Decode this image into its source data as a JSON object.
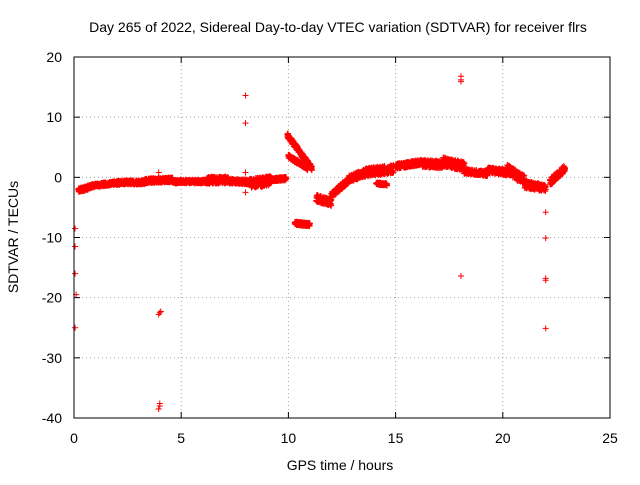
{
  "chart_data": {
    "type": "scatter",
    "title": "Day 265 of 2022, Sidereal Day-to-day VTEC variation (SDTVAR) for receiver flrs",
    "xlabel": "GPS time / hours",
    "ylabel": "SDTVAR / TECUs",
    "xlim": [
      0,
      25
    ],
    "ylim": [
      -40,
      20
    ],
    "xticks": [
      "0",
      "5",
      "10",
      "15",
      "20",
      "25"
    ],
    "yticks": [
      "-40",
      "-30",
      "-20",
      "-10",
      "0",
      "10",
      "20"
    ],
    "grid": true,
    "marker": "plus",
    "series_color": "#ff0000",
    "segments": [
      {
        "x0": 0.2,
        "x1": 0.9,
        "y0": -2.2,
        "y1": -1.4,
        "spread": 0.7
      },
      {
        "x0": 0.9,
        "x1": 2.0,
        "y0": -1.4,
        "y1": -0.9,
        "spread": 0.6
      },
      {
        "x0": 2.0,
        "x1": 3.3,
        "y0": -0.9,
        "y1": -0.8,
        "spread": 0.7
      },
      {
        "x0": 3.3,
        "x1": 4.6,
        "y0": -0.6,
        "y1": -0.4,
        "spread": 0.8
      },
      {
        "x0": 4.6,
        "x1": 6.2,
        "y0": -0.7,
        "y1": -0.7,
        "spread": 0.6
      },
      {
        "x0": 6.2,
        "x1": 7.2,
        "y0": -0.5,
        "y1": -0.4,
        "spread": 1.2
      },
      {
        "x0": 7.2,
        "x1": 8.2,
        "y0": -0.6,
        "y1": -0.8,
        "spread": 0.8
      },
      {
        "x0": 8.2,
        "x1": 9.2,
        "y0": -1.0,
        "y1": -0.6,
        "spread": 1.6
      },
      {
        "x0": 9.2,
        "x1": 9.9,
        "y0": -0.4,
        "y1": -0.2,
        "spread": 0.6
      },
      {
        "x0": 9.95,
        "x1": 11.1,
        "y0": 7.0,
        "y1": 1.5,
        "spread": 0.8
      },
      {
        "x0": 10.0,
        "x1": 10.9,
        "y0": 3.5,
        "y1": 1.5,
        "spread": 0.6
      },
      {
        "x0": 10.3,
        "x1": 11.0,
        "y0": -7.6,
        "y1": -7.9,
        "spread": 0.6
      },
      {
        "x0": 11.3,
        "x1": 12.0,
        "y0": -3.5,
        "y1": -4.2,
        "spread": 1.2
      },
      {
        "x0": 12.0,
        "x1": 12.8,
        "y0": -3.0,
        "y1": -0.5,
        "spread": 1.0
      },
      {
        "x0": 12.8,
        "x1": 13.6,
        "y0": -0.3,
        "y1": 0.8,
        "spread": 1.2
      },
      {
        "x0": 13.6,
        "x1": 14.9,
        "y0": 0.8,
        "y1": 1.4,
        "spread": 1.4
      },
      {
        "x0": 14.1,
        "x1": 14.6,
        "y0": -1.0,
        "y1": -1.2,
        "spread": 0.4
      },
      {
        "x0": 15.0,
        "x1": 16.2,
        "y0": 1.8,
        "y1": 2.5,
        "spread": 0.9
      },
      {
        "x0": 16.2,
        "x1": 17.2,
        "y0": 2.3,
        "y1": 2.1,
        "spread": 1.2
      },
      {
        "x0": 17.2,
        "x1": 18.2,
        "y0": 2.6,
        "y1": 1.8,
        "spread": 1.5
      },
      {
        "x0": 18.2,
        "x1": 19.3,
        "y0": 1.0,
        "y1": 0.6,
        "spread": 0.8
      },
      {
        "x0": 19.3,
        "x1": 20.2,
        "y0": 1.2,
        "y1": 0.8,
        "spread": 1.0
      },
      {
        "x0": 20.2,
        "x1": 21.0,
        "y0": 1.4,
        "y1": -0.5,
        "spread": 1.6
      },
      {
        "x0": 21.0,
        "x1": 22.0,
        "y0": -1.2,
        "y1": -1.8,
        "spread": 1.2
      },
      {
        "x0": 22.2,
        "x1": 22.9,
        "y0": -0.8,
        "y1": 1.5,
        "spread": 1.2
      }
    ],
    "outliers": [
      {
        "x": 0.05,
        "y": -8.5
      },
      {
        "x": 0.05,
        "y": -11.5
      },
      {
        "x": 0.05,
        "y": -16.0
      },
      {
        "x": 0.1,
        "y": -19.5
      },
      {
        "x": 0.05,
        "y": -25.0
      },
      {
        "x": 4.0,
        "y": -22.5
      },
      {
        "x": 3.95,
        "y": -22.8
      },
      {
        "x": 4.05,
        "y": -22.3
      },
      {
        "x": 4.0,
        "y": -38.0
      },
      {
        "x": 3.95,
        "y": -38.5
      },
      {
        "x": 4.0,
        "y": -37.6
      },
      {
        "x": 3.95,
        "y": 0.8
      },
      {
        "x": 8.0,
        "y": 13.6
      },
      {
        "x": 8.0,
        "y": 9.0
      },
      {
        "x": 8.0,
        "y": 0.8
      },
      {
        "x": 8.0,
        "y": -2.5
      },
      {
        "x": 18.05,
        "y": 16.8
      },
      {
        "x": 18.05,
        "y": 16.2
      },
      {
        "x": 18.05,
        "y": 15.9
      },
      {
        "x": 18.05,
        "y": -16.4
      },
      {
        "x": 22.0,
        "y": -5.8
      },
      {
        "x": 22.0,
        "y": -10.1
      },
      {
        "x": 22.0,
        "y": -16.8
      },
      {
        "x": 22.0,
        "y": -17.1
      },
      {
        "x": 22.0,
        "y": -25.1
      }
    ]
  }
}
